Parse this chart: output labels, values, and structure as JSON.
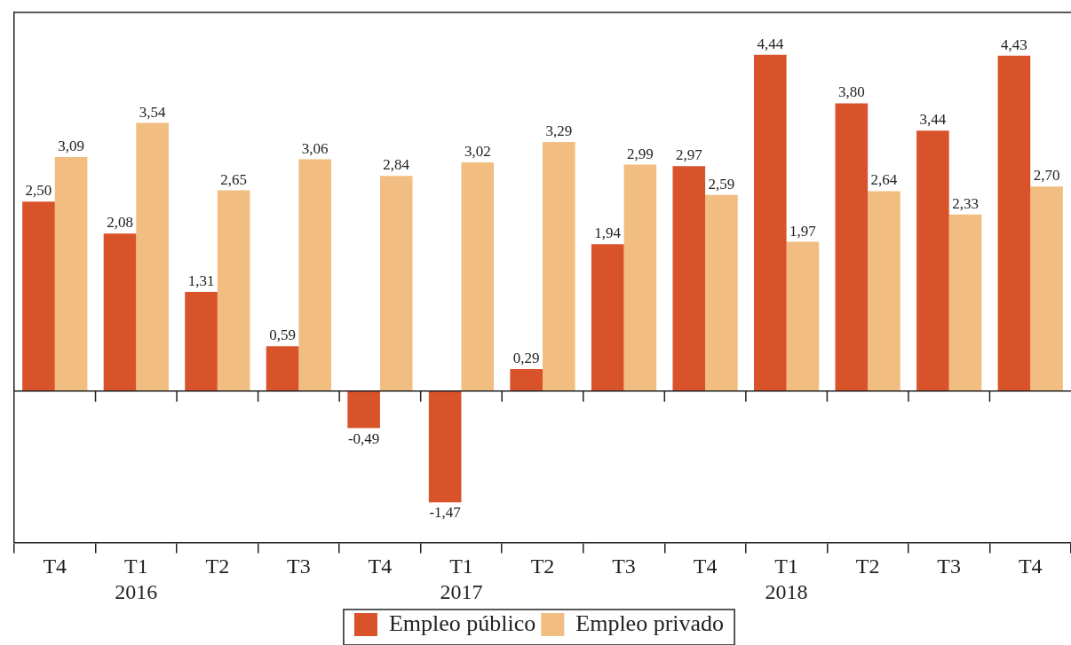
{
  "chart_data": {
    "type": "bar",
    "categories": [
      "T4",
      "T1\n2016",
      "T2",
      "T3",
      "T4",
      "T1\n2017",
      "T2",
      "T3",
      "T4",
      "T1\n2018",
      "T2",
      "T3",
      "T4"
    ],
    "series": [
      {
        "name": "Empleo público",
        "color": "#d9532a",
        "values": [
          2.5,
          2.08,
          1.31,
          0.59,
          -0.49,
          -1.47,
          0.29,
          1.94,
          2.97,
          4.44,
          3.8,
          3.44,
          4.43
        ],
        "value_labels": [
          "2,50",
          "2,08",
          "1,31",
          "0,59",
          "-0,49",
          "-1,47",
          "0,29",
          "1,94",
          "2,97",
          "4,44",
          "3,80",
          "3,44",
          "4,43"
        ]
      },
      {
        "name": "Empleo privado",
        "color": "#f2bd80",
        "values": [
          3.09,
          3.54,
          2.65,
          3.06,
          2.84,
          3.02,
          3.29,
          2.99,
          2.59,
          1.97,
          2.64,
          2.33,
          2.7
        ],
        "value_labels": [
          "3,09",
          "3,54",
          "2,65",
          "3,06",
          "2,84",
          "3,02",
          "3,29",
          "2,99",
          "2,59",
          "1,97",
          "2,64",
          "2,33",
          "2,70"
        ]
      }
    ],
    "legend": "bottom",
    "grid": false
  }
}
